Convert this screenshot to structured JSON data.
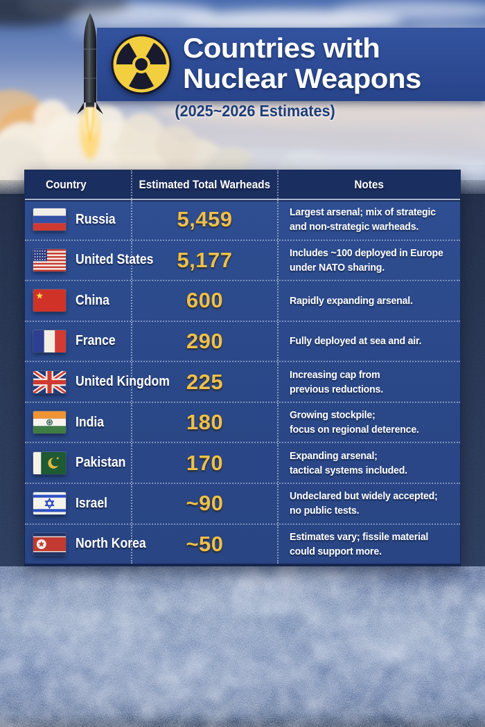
{
  "header": {
    "title_line1": "Countries with",
    "title_line2": "Nuclear Weapons",
    "subtitle": "(2025~2026 Estimates)",
    "icon": "radiation-icon"
  },
  "table": {
    "columns": [
      "Country",
      "Estimated Total Warheads",
      "Notes"
    ],
    "rows": [
      {
        "flag": "russia",
        "country": "Russia",
        "warheads": "5,459",
        "notes": [
          "Largest arsenal; mix of strategic",
          "and non-strategic warheads."
        ]
      },
      {
        "flag": "united-states",
        "country": "United States",
        "warheads": "5,177",
        "notes": [
          "Includes ~100 deployed in Europe",
          "under NATO sharing."
        ]
      },
      {
        "flag": "china",
        "country": "China",
        "warheads": "600",
        "notes": [
          "Rapidly expanding arsenal."
        ]
      },
      {
        "flag": "france",
        "country": "France",
        "warheads": "290",
        "notes": [
          "Fully deployed at sea and air."
        ]
      },
      {
        "flag": "united-kingdom",
        "country": "United Kingdom",
        "warheads": "225",
        "notes": [
          "Increasing cap from",
          "previous reductions."
        ]
      },
      {
        "flag": "india",
        "country": "India",
        "warheads": "180",
        "notes": [
          "Growing stockpile;",
          "focus on regional deterence."
        ]
      },
      {
        "flag": "pakistan",
        "country": "Pakistan",
        "warheads": "170",
        "notes": [
          "Expanding arsenal;",
          "tactical systems included."
        ]
      },
      {
        "flag": "israel",
        "country": "Israel",
        "warheads": "~90",
        "notes": [
          "Undeclared but widely accepted;",
          "no public tests."
        ]
      },
      {
        "flag": "north-korea",
        "country": "North Korea",
        "warheads": "~50",
        "notes": [
          "Estimates vary; fissile material",
          "could support more."
        ]
      }
    ]
  },
  "chart_data": {
    "type": "table",
    "title": "Countries with Nuclear Weapons",
    "subtitle": "(2025~2026 Estimates)",
    "columns": [
      "Country",
      "Estimated Total Warheads",
      "Notes"
    ],
    "categories": [
      "Russia",
      "United States",
      "China",
      "France",
      "United Kingdom",
      "India",
      "Pakistan",
      "Israel",
      "North Korea"
    ],
    "values": [
      5459,
      5177,
      600,
      290,
      225,
      180,
      170,
      90,
      50
    ],
    "value_labels": [
      "5,459",
      "5,177",
      "600",
      "290",
      "225",
      "180",
      "170",
      "~90",
      "~50"
    ],
    "notes": [
      "Largest arsenal; mix of strategic and non-strategic warheads.",
      "Includes ~100 deployed in Europe under NATO sharing.",
      "Rapidly expanding arsenal.",
      "Fully deployed at sea and air.",
      "Increasing cap from previous reductions.",
      "Growing stockpile; focus on regional deterence.",
      "Expanding arsenal; tactical systems included.",
      "Undeclared but widely accepted; no public tests.",
      "Estimates vary; fissile material could support more."
    ]
  },
  "colors": {
    "banner_blue": "#2c4a92",
    "table_header_blue": "#1b2e60",
    "table_body_blue": "#2c4a8c",
    "accent_gold": "#eec04a",
    "radiation_yellow": "#f2cf3f",
    "subtitle_blue": "#1e3c78",
    "text_white": "#ffffff"
  }
}
